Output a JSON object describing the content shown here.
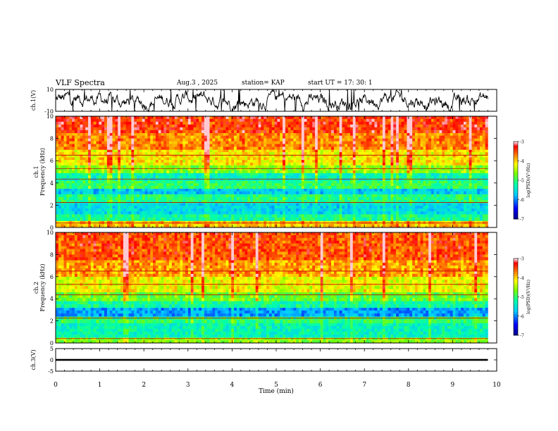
{
  "header": {
    "title": "VLF Spectra",
    "date": "Aug.3  , 2025",
    "station": "station= KAP",
    "start_ut": "start  UT  =   17: 30: 1"
  },
  "chart_data": [
    {
      "type": "line",
      "name": "ch1-waveform",
      "ylabel": "ch.1(V)",
      "ylim": [
        -10,
        10
      ],
      "ytick_labels": [
        "10",
        "-10"
      ],
      "xlim": [
        0,
        10
      ],
      "data_end_min": 9.8,
      "description_series": "noisy waveform mostly between -8 and +8 V"
    },
    {
      "type": "heatmap",
      "name": "ch1-spectrogram",
      "ylabel": "ch.1  Frequency (kHz)",
      "ylabel_lines": [
        "ch.1",
        "Frequency (kHz)"
      ],
      "ylim": [
        0,
        10
      ],
      "ytick_labels": [
        "0",
        "2",
        "4",
        "6",
        "8",
        "10"
      ],
      "xlim": [
        0,
        10
      ],
      "data_end_min": 9.8,
      "color_scale": {
        "label": "log(PSD)(V²/Hz)",
        "range": [
          -7,
          -3
        ],
        "tick_labels": [
          "-3",
          "-4",
          "-5",
          "-6",
          "-7"
        ]
      },
      "bands_khz": [
        {
          "from": 0.0,
          "to": 0.6,
          "level": -4.0
        },
        {
          "from": 0.6,
          "to": 1.2,
          "level": -5.2
        },
        {
          "from": 1.2,
          "to": 2.2,
          "level": -5.6
        },
        {
          "from": 2.2,
          "to": 3.0,
          "level": -5.1
        },
        {
          "from": 3.0,
          "to": 3.5,
          "level": -5.7
        },
        {
          "from": 3.5,
          "to": 4.2,
          "level": -5.0
        },
        {
          "from": 4.2,
          "to": 4.9,
          "level": -5.4
        },
        {
          "from": 4.9,
          "to": 5.6,
          "level": -4.7
        },
        {
          "from": 5.6,
          "to": 7.0,
          "level": -4.2
        },
        {
          "from": 7.0,
          "to": 8.5,
          "level": -3.8
        },
        {
          "from": 8.5,
          "to": 10.0,
          "level": -3.5
        }
      ]
    },
    {
      "type": "heatmap",
      "name": "ch2-spectrogram",
      "ylabel": "ch.2  Frequency (kHz)",
      "ylabel_lines": [
        "ch.2",
        "Frequency (kHz)"
      ],
      "ylim": [
        0,
        10
      ],
      "ytick_labels": [
        "0",
        "2",
        "4",
        "6",
        "8",
        "10"
      ],
      "xlim": [
        0,
        10
      ],
      "data_end_min": 9.8,
      "color_scale": {
        "label": "log(PSD)(V²/Hz)",
        "range": [
          -7,
          -3
        ],
        "tick_labels": [
          "-3",
          "-4",
          "-5",
          "-6",
          "-7"
        ]
      },
      "bands_khz": [
        {
          "from": 0.0,
          "to": 0.5,
          "level": -4.6
        },
        {
          "from": 0.5,
          "to": 1.8,
          "level": -5.3
        },
        {
          "from": 1.8,
          "to": 2.4,
          "level": -5.0
        },
        {
          "from": 2.4,
          "to": 3.2,
          "level": -5.9
        },
        {
          "from": 3.2,
          "to": 3.8,
          "level": -5.2
        },
        {
          "from": 3.8,
          "to": 4.6,
          "level": -4.8
        },
        {
          "from": 4.6,
          "to": 6.0,
          "level": -4.3
        },
        {
          "from": 6.0,
          "to": 7.5,
          "level": -3.9
        },
        {
          "from": 7.5,
          "to": 10.0,
          "level": -3.6
        }
      ]
    },
    {
      "type": "line",
      "name": "ch3-waveform",
      "ylabel": "ch.3(V)",
      "ylim": [
        -5,
        5
      ],
      "ytick_labels": [
        "5",
        "0",
        "-5"
      ],
      "xlim": [
        0,
        10
      ],
      "data_end_min": 9.8,
      "band": {
        "from": -0.4,
        "to": 0.4
      }
    }
  ],
  "x_axis": {
    "label": "Time (min)",
    "tick_labels": [
      "0",
      "1",
      "2",
      "3",
      "4",
      "5",
      "6",
      "7",
      "8",
      "9",
      "10"
    ]
  }
}
